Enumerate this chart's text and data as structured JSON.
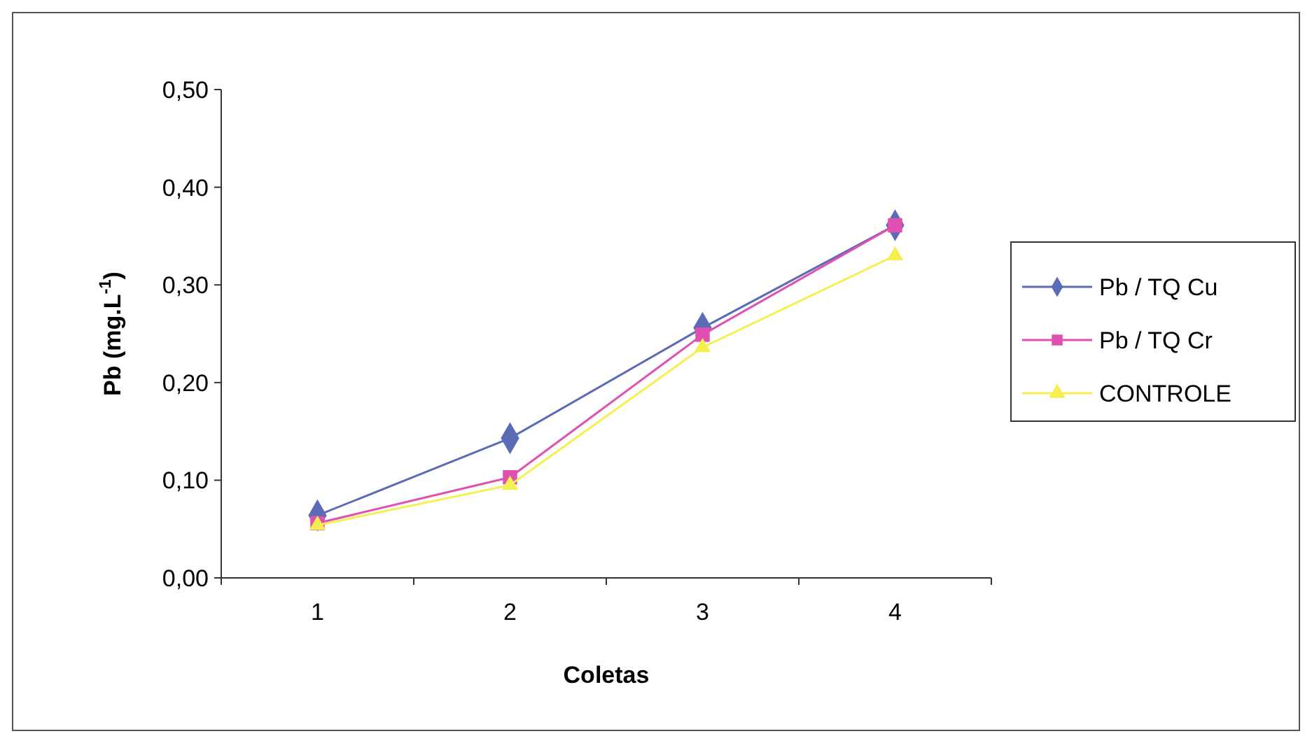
{
  "chart_data": {
    "type": "line",
    "xlabel": "Coletas",
    "ylabel": "Pb  (mg.L$^{-1}$)",
    "categories": [
      "1",
      "2",
      "3",
      "4"
    ],
    "series": [
      {
        "name": "Pb / TQ Cu",
        "color": "#5b6bb5",
        "marker": "diamond",
        "values": [
          0.064,
          0.143,
          0.256,
          0.361
        ]
      },
      {
        "name": "Pb / TQ Cr",
        "color": "#e050b0",
        "marker": "square",
        "values": [
          0.056,
          0.103,
          0.249,
          0.361
        ]
      },
      {
        "name": "CONTROLE",
        "color": "#f5f050",
        "marker": "triangle",
        "values": [
          0.054,
          0.095,
          0.236,
          0.33
        ]
      }
    ],
    "ylim": [
      0,
      0.5
    ],
    "yticks": [
      {
        "value": 0,
        "label": "0,00"
      },
      {
        "value": 0.1,
        "label": "0,10"
      },
      {
        "value": 0.2,
        "label": "0,20"
      },
      {
        "value": 0.3,
        "label": "0,30"
      },
      {
        "value": 0.4,
        "label": "0,40"
      },
      {
        "value": 0.5,
        "label": "0,50"
      }
    ],
    "grid": false,
    "legend": "right"
  }
}
